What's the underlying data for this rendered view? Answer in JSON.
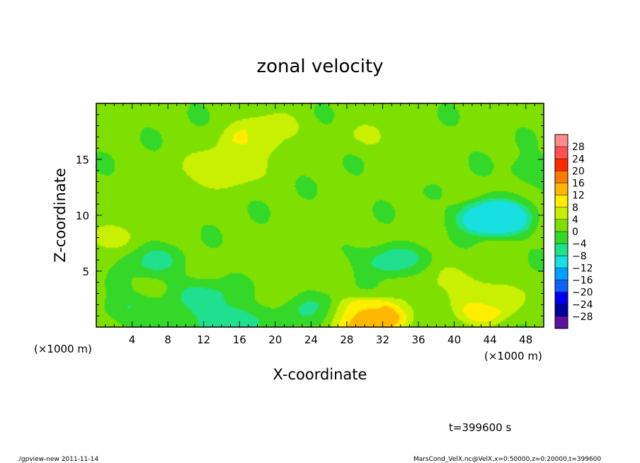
{
  "chart_data": {
    "type": "heatmap",
    "title": "zonal velocity",
    "xlabel": "X-coordinate",
    "ylabel": "Z-coordinate",
    "x_units_left": "(×1000 m)",
    "x_units_right": "(×1000 m)",
    "xlim": [
      0,
      50
    ],
    "ylim": [
      0,
      20
    ],
    "xticks": [
      4,
      8,
      12,
      16,
      20,
      24,
      28,
      32,
      36,
      40,
      44,
      48
    ],
    "xtick_labels": [
      "4",
      "8",
      "12",
      "16",
      "20",
      "24",
      "28",
      "32",
      "36",
      "40",
      "44",
      "48"
    ],
    "yticks": [
      5,
      10,
      15
    ],
    "ytick_labels": [
      "5",
      "10",
      "15"
    ],
    "colorbar": {
      "levels": [
        28,
        24,
        20,
        16,
        12,
        8,
        4,
        0,
        -4,
        -8,
        -12,
        -16,
        -20,
        -24,
        -28
      ],
      "labels": [
        "28",
        "24",
        "20",
        "16",
        "12",
        "8",
        "4",
        "0",
        "−4",
        "−8",
        "−12",
        "−16",
        "−20",
        "−24",
        "−28"
      ],
      "colors": [
        "#ff8c8c",
        "#ff5050",
        "#ff2a00",
        "#ff7a00",
        "#ffb800",
        "#ffee00",
        "#c8f000",
        "#7ee000",
        "#34d829",
        "#1fe08f",
        "#18e0e0",
        "#00a0ff",
        "#1060ff",
        "#0000f0",
        "#0000a0",
        "#6010a0"
      ]
    },
    "field_features": [
      {
        "x": 1,
        "z": 8,
        "u": 6
      },
      {
        "x": 6,
        "z": 11,
        "u": 3
      },
      {
        "x": 12,
        "z": 14,
        "u": 4
      },
      {
        "x": 15,
        "z": 14,
        "u": 7
      },
      {
        "x": 17,
        "z": 16.5,
        "u": 8
      },
      {
        "x": 20,
        "z": 18,
        "u": 5
      },
      {
        "x": 31,
        "z": 17,
        "u": 4
      },
      {
        "x": 36,
        "z": 14,
        "u": 3
      },
      {
        "x": 40,
        "z": 16,
        "u": 1
      },
      {
        "x": 44,
        "z": 10,
        "u": -9
      },
      {
        "x": 45,
        "z": 9.5,
        "u": -10
      },
      {
        "x": 33,
        "z": 6,
        "u": -7
      },
      {
        "x": 6,
        "z": 6,
        "u": -5
      },
      {
        "x": 12,
        "z": 3,
        "u": -5
      },
      {
        "x": 15,
        "z": 0.3,
        "u": -9
      },
      {
        "x": 24,
        "z": 1.5,
        "u": -5
      },
      {
        "x": 4,
        "z": 1.5,
        "u": -4
      },
      {
        "x": 31,
        "z": 0.5,
        "u": 16
      },
      {
        "x": 30,
        "z": 1.2,
        "u": 10
      },
      {
        "x": 43,
        "z": 1.5,
        "u": 9
      },
      {
        "x": 44,
        "z": 3,
        "u": 6
      },
      {
        "x": 38,
        "z": 4.5,
        "u": 4
      },
      {
        "x": 19,
        "z": 6,
        "u": 3
      },
      {
        "x": 26,
        "z": 8,
        "u": 2
      },
      {
        "x": 49,
        "z": 14,
        "u": -3
      },
      {
        "x": 10,
        "z": 0.8,
        "u": 0
      }
    ],
    "background_u": 1
  },
  "annotations": {
    "time": "t=399600 s",
    "footer_left": "./gpview-new   2011-11-14",
    "footer_right": "MarsCond_VelX.nc@VelX,x=0:50000,z=0:20000,t=399600"
  }
}
